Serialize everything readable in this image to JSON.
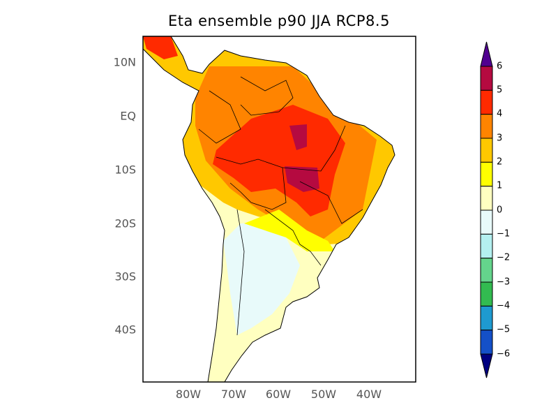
{
  "title": "Eta ensemble p90 JJA RCP8.5",
  "lat_labels": [
    "10N",
    "EQ",
    "10S",
    "20S",
    "30S",
    "40S"
  ],
  "lon_labels": [
    "80W",
    "70W",
    "60W",
    "50W",
    "40W"
  ],
  "colorbar": {
    "labels": [
      "6",
      "5",
      "4",
      "3",
      "2",
      "1",
      "0",
      "−1",
      "−2",
      "−3",
      "−4",
      "−5",
      "−6"
    ],
    "colors": [
      "#b50a40",
      "#ff2a00",
      "#ff8400",
      "#ffc800",
      "#ffff00",
      "#ffffc0",
      "#e8fafa",
      "#b4f0f0",
      "#64d48c",
      "#32bb50",
      "#1e9ad0",
      "#1450c8"
    ],
    "over_color": "#500090",
    "under_color": "#000080"
  }
}
